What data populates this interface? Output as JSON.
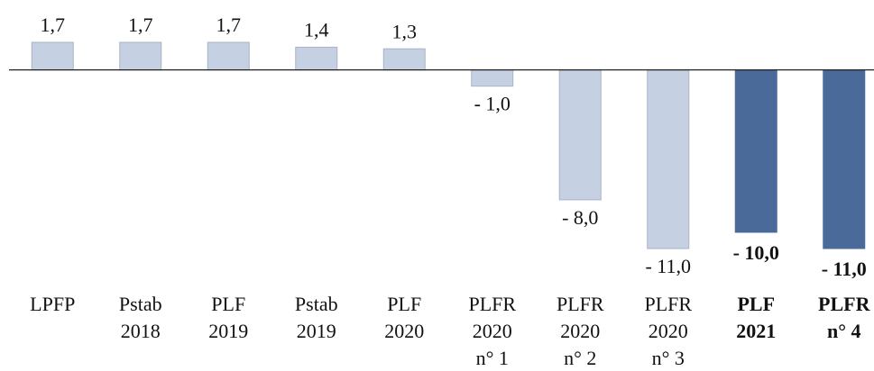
{
  "chart_data": {
    "type": "bar",
    "categories": [
      [
        "LPFP"
      ],
      [
        "Pstab",
        "2018"
      ],
      [
        "PLF",
        "2019"
      ],
      [
        "Pstab",
        "2019"
      ],
      [
        "PLF",
        "2020"
      ],
      [
        "PLFR",
        "2020",
        "n° 1"
      ],
      [
        "PLFR",
        "2020",
        "n° 2"
      ],
      [
        "PLFR",
        "2020",
        "n° 3"
      ],
      [
        "PLF",
        "2021"
      ],
      [
        "PLFR",
        "n° 4"
      ]
    ],
    "values": [
      1.7,
      1.7,
      1.7,
      1.4,
      1.3,
      -1.0,
      -8.0,
      -11.0,
      -10.0,
      -11.0
    ],
    "value_labels": [
      "1,7",
      "1,7",
      "1,7",
      "1,4",
      "1,3",
      "- 1,0",
      "- 8,0",
      "- 11,0",
      "- 10,0",
      "- 11,0"
    ],
    "colors": [
      "#c5d0e2",
      "#c5d0e2",
      "#c5d0e2",
      "#c5d0e2",
      "#c5d0e2",
      "#c5d0e2",
      "#c5d0e2",
      "#c5d0e2",
      "#4a6a9a",
      "#4a6a9a"
    ],
    "bold": [
      false,
      false,
      false,
      false,
      false,
      false,
      false,
      false,
      true,
      true
    ],
    "ylim": [
      -11,
      1.7
    ]
  }
}
